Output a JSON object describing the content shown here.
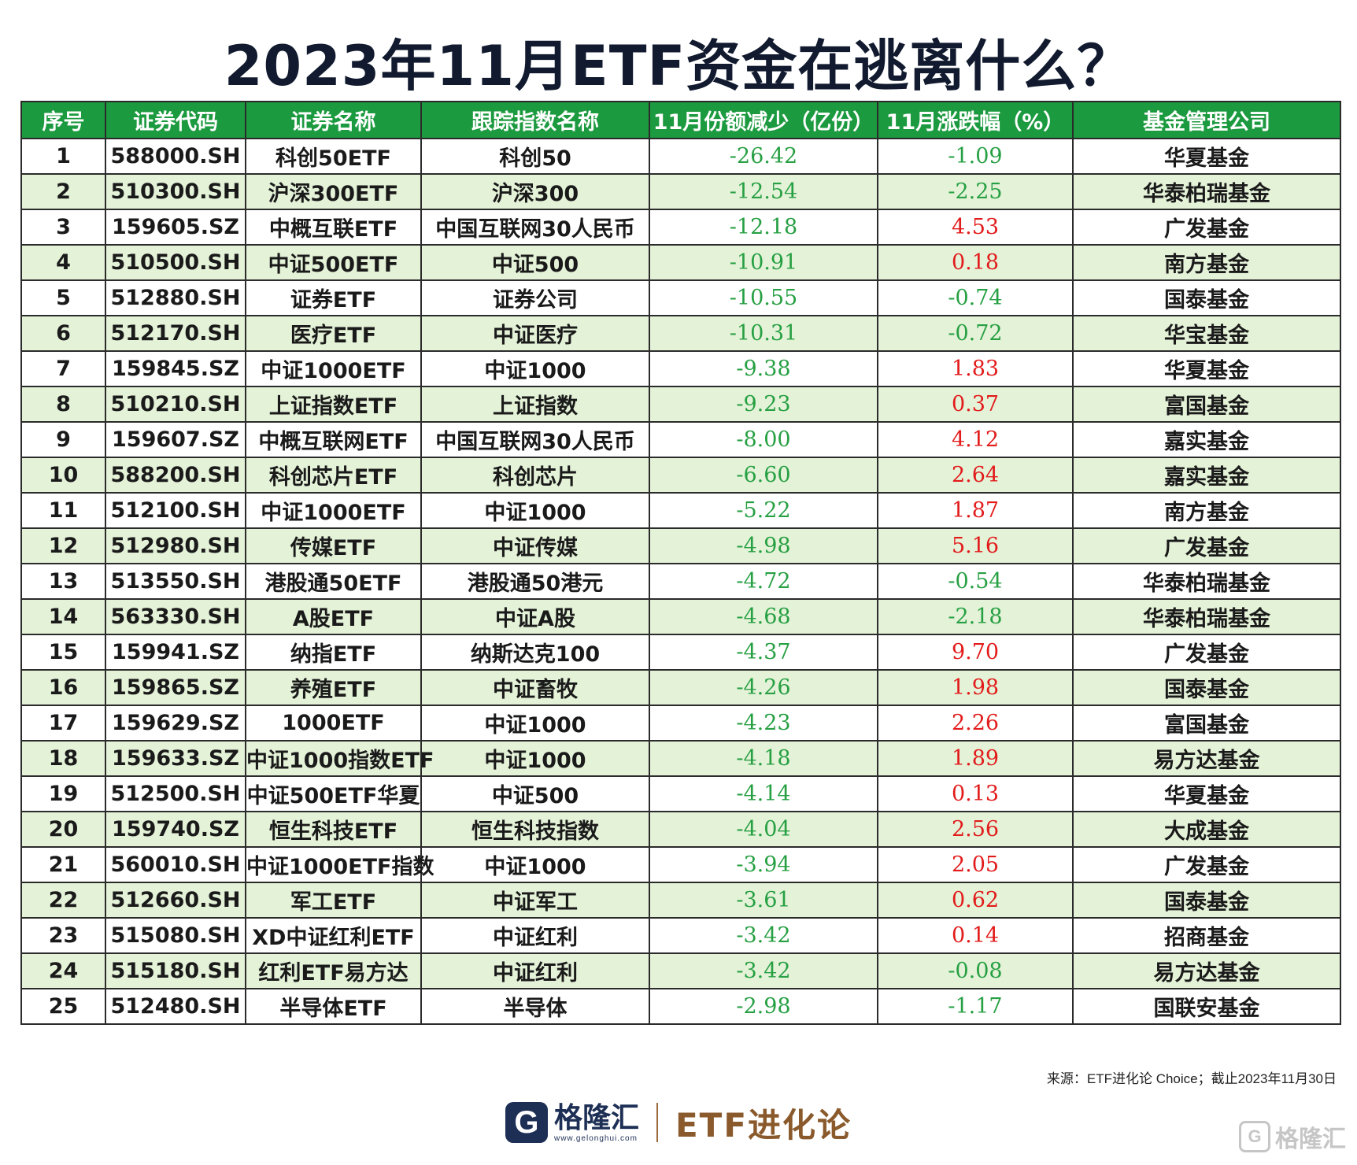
{
  "title": "2023年11月ETF资金在逃离什么？",
  "columns": [
    "序号",
    "证券代码",
    "证券名称",
    "跟踪指数名称",
    "11月份额减少（亿份）",
    "11月涨跌幅（%）",
    "基金管理公司"
  ],
  "rows": [
    {
      "no": "1",
      "code": "588000.SH",
      "name": "科创50ETF",
      "index": "科创50",
      "decrease": "-26.42",
      "change": "-1.09",
      "company": "华夏基金"
    },
    {
      "no": "2",
      "code": "510300.SH",
      "name": "沪深300ETF",
      "index": "沪深300",
      "decrease": "-12.54",
      "change": "-2.25",
      "company": "华泰柏瑞基金"
    },
    {
      "no": "3",
      "code": "159605.SZ",
      "name": "中概互联ETF",
      "index": "中国互联网30人民币",
      "decrease": "-12.18",
      "change": "4.53",
      "company": "广发基金"
    },
    {
      "no": "4",
      "code": "510500.SH",
      "name": "中证500ETF",
      "index": "中证500",
      "decrease": "-10.91",
      "change": "0.18",
      "company": "南方基金"
    },
    {
      "no": "5",
      "code": "512880.SH",
      "name": "证券ETF",
      "index": "证券公司",
      "decrease": "-10.55",
      "change": "-0.74",
      "company": "国泰基金"
    },
    {
      "no": "6",
      "code": "512170.SH",
      "name": "医疗ETF",
      "index": "中证医疗",
      "decrease": "-10.31",
      "change": "-0.72",
      "company": "华宝基金"
    },
    {
      "no": "7",
      "code": "159845.SZ",
      "name": "中证1000ETF",
      "index": "中证1000",
      "decrease": "-9.38",
      "change": "1.83",
      "company": "华夏基金"
    },
    {
      "no": "8",
      "code": "510210.SH",
      "name": "上证指数ETF",
      "index": "上证指数",
      "decrease": "-9.23",
      "change": "0.37",
      "company": "富国基金"
    },
    {
      "no": "9",
      "code": "159607.SZ",
      "name": "中概互联网ETF",
      "index": "中国互联网30人民币",
      "decrease": "-8.00",
      "change": "4.12",
      "company": "嘉实基金"
    },
    {
      "no": "10",
      "code": "588200.SH",
      "name": "科创芯片ETF",
      "index": "科创芯片",
      "decrease": "-6.60",
      "change": "2.64",
      "company": "嘉实基金"
    },
    {
      "no": "11",
      "code": "512100.SH",
      "name": "中证1000ETF",
      "index": "中证1000",
      "decrease": "-5.22",
      "change": "1.87",
      "company": "南方基金"
    },
    {
      "no": "12",
      "code": "512980.SH",
      "name": "传媒ETF",
      "index": "中证传媒",
      "decrease": "-4.98",
      "change": "5.16",
      "company": "广发基金"
    },
    {
      "no": "13",
      "code": "513550.SH",
      "name": "港股通50ETF",
      "index": "港股通50港元",
      "decrease": "-4.72",
      "change": "-0.54",
      "company": "华泰柏瑞基金"
    },
    {
      "no": "14",
      "code": "563330.SH",
      "name": "A股ETF",
      "index": "中证A股",
      "decrease": "-4.68",
      "change": "-2.18",
      "company": "华泰柏瑞基金"
    },
    {
      "no": "15",
      "code": "159941.SZ",
      "name": "纳指ETF",
      "index": "纳斯达克100",
      "decrease": "-4.37",
      "change": "9.70",
      "company": "广发基金"
    },
    {
      "no": "16",
      "code": "159865.SZ",
      "name": "养殖ETF",
      "index": "中证畜牧",
      "decrease": "-4.26",
      "change": "1.98",
      "company": "国泰基金"
    },
    {
      "no": "17",
      "code": "159629.SZ",
      "name": "1000ETF",
      "index": "中证1000",
      "decrease": "-4.23",
      "change": "2.26",
      "company": "富国基金"
    },
    {
      "no": "18",
      "code": "159633.SZ",
      "name": "中证1000指数ETF",
      "index": "中证1000",
      "decrease": "-4.18",
      "change": "1.89",
      "company": "易方达基金"
    },
    {
      "no": "19",
      "code": "512500.SH",
      "name": "中证500ETF华夏",
      "index": "中证500",
      "decrease": "-4.14",
      "change": "0.13",
      "company": "华夏基金"
    },
    {
      "no": "20",
      "code": "159740.SZ",
      "name": "恒生科技ETF",
      "index": "恒生科技指数",
      "decrease": "-4.04",
      "change": "2.56",
      "company": "大成基金"
    },
    {
      "no": "21",
      "code": "560010.SH",
      "name": "中证1000ETF指数",
      "index": "中证1000",
      "decrease": "-3.94",
      "change": "2.05",
      "company": "广发基金"
    },
    {
      "no": "22",
      "code": "512660.SH",
      "name": "军工ETF",
      "index": "中证军工",
      "decrease": "-3.61",
      "change": "0.62",
      "company": "国泰基金"
    },
    {
      "no": "23",
      "code": "515080.SH",
      "name": "XD中证红利ETF",
      "index": "中证红利",
      "decrease": "-3.42",
      "change": "0.14",
      "company": "招商基金"
    },
    {
      "no": "24",
      "code": "515180.SH",
      "name": "红利ETF易方达",
      "index": "中证红利",
      "decrease": "-3.42",
      "change": "-0.08",
      "company": "易方达基金"
    },
    {
      "no": "25",
      "code": "512480.SH",
      "name": "半导体ETF",
      "index": "半导体",
      "decrease": "-2.98",
      "change": "-1.17",
      "company": "国联安基金"
    }
  ],
  "source": "来源：ETF进化论 Choice；截止2023年11月30日",
  "footer": {
    "logo_letter": "G",
    "logo_name": "格隆汇",
    "logo_url": "www.gelonghui.com",
    "brand": "ETF进化论"
  },
  "watermark": {
    "letter": "G",
    "text": "格隆汇"
  },
  "colors": {
    "header_bg": "#1c9a3f",
    "alt_row": "#e4f2d8",
    "negative": "#27a043",
    "positive": "#e21b1b"
  }
}
